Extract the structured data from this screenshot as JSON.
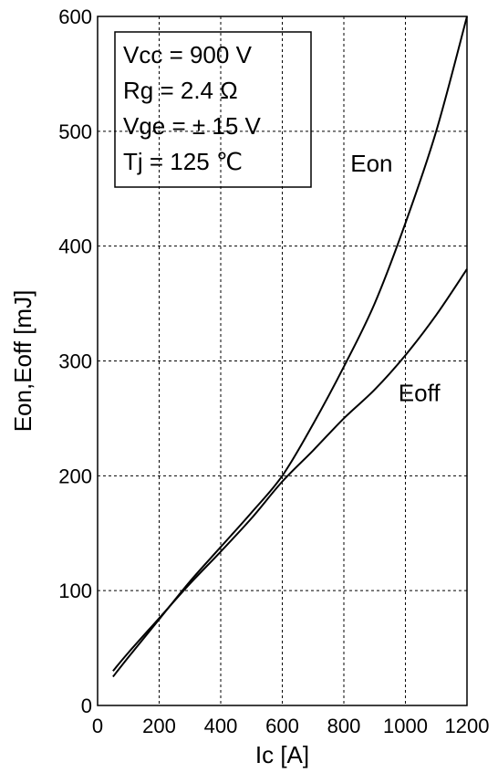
{
  "chart_data": {
    "type": "line",
    "xlabel": "Ic [A]",
    "ylabel": "Eon,Eoff [mJ]",
    "xlim": [
      0,
      1200
    ],
    "ylim": [
      0,
      600
    ],
    "xticks": [
      0,
      200,
      400,
      600,
      800,
      1000,
      1200
    ],
    "yticks": [
      0,
      100,
      200,
      300,
      400,
      500,
      600
    ],
    "grid": true,
    "conditions": [
      "Vcc = 900 V",
      "Rg = 2.4 Ω",
      "Vge = ± 15 V",
      "Tj = 125 ℃"
    ],
    "series": [
      {
        "name": "Eon",
        "x": [
          50,
          100,
          200,
          300,
          400,
          500,
          600,
          700,
          800,
          900,
          1000,
          1100,
          1200
        ],
        "y": [
          25,
          42,
          75,
          108,
          138,
          168,
          200,
          245,
          295,
          350,
          420,
          500,
          600
        ]
      },
      {
        "name": "Eoff",
        "x": [
          50,
          100,
          200,
          300,
          400,
          500,
          600,
          700,
          800,
          900,
          1000,
          1100,
          1200
        ],
        "y": [
          30,
          46,
          76,
          106,
          134,
          163,
          195,
          222,
          250,
          275,
          305,
          340,
          380
        ]
      }
    ],
    "series_label_positions": {
      "Eon": [
        890,
        465
      ],
      "Eoff": [
        1045,
        265
      ]
    }
  }
}
